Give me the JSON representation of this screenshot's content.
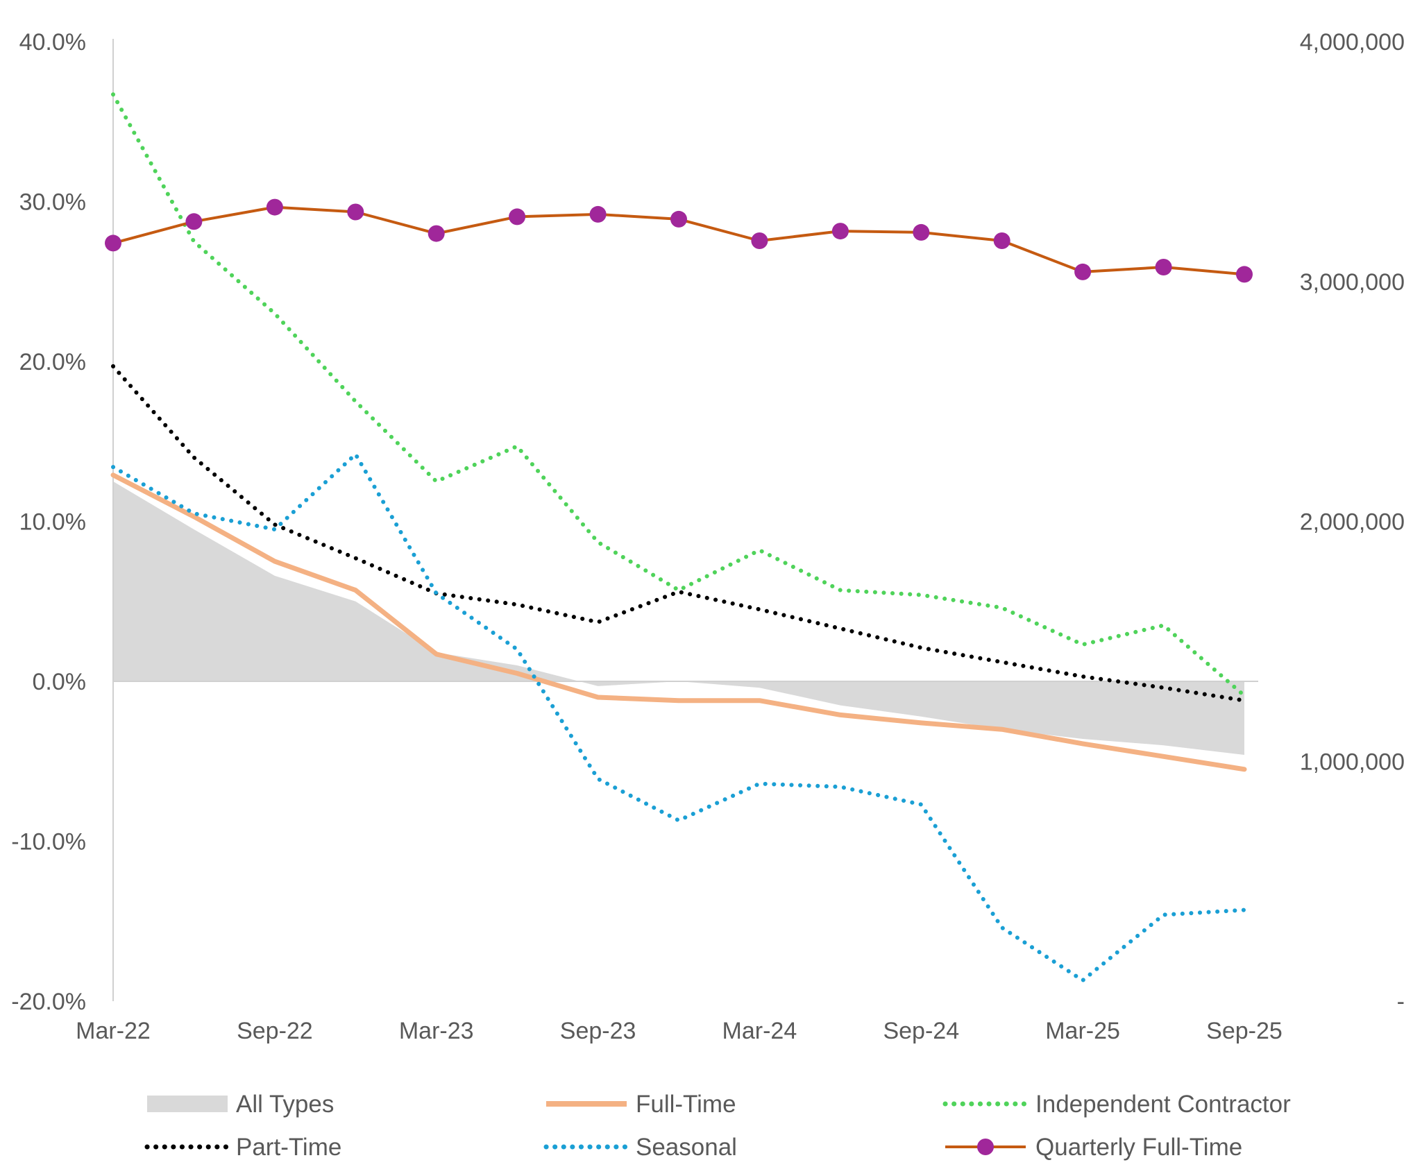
{
  "chart_data": {
    "type": "line",
    "title": "",
    "xlabel": "",
    "ylabel_left": "",
    "ylabel_right": "",
    "x_tick_labels": [
      "Mar-22",
      "Sep-22",
      "Mar-23",
      "Sep-23",
      "Mar-24",
      "Sep-24",
      "Mar-25",
      "Sep-25"
    ],
    "x": [
      "Mar-22",
      "Jun-22",
      "Sep-22",
      "Dec-22",
      "Mar-23",
      "Jun-23",
      "Sep-23",
      "Dec-23",
      "Mar-24",
      "Jun-24",
      "Sep-24",
      "Dec-24",
      "Mar-25",
      "Jun-25",
      "Sep-25"
    ],
    "y_left": {
      "min": -20,
      "max": 40,
      "step": 10,
      "tick_labels": [
        "-20.0%",
        "-10.0%",
        "0.0%",
        "10.0%",
        "20.0%",
        "30.0%",
        "40.0%"
      ]
    },
    "y_right": {
      "min": 0,
      "max": 4000000,
      "step": 1000000,
      "tick_labels": [
        "-",
        "1,000,000",
        "2,000,000",
        "3,000,000",
        "4,000,000"
      ]
    },
    "grid": false,
    "legend_position": "bottom",
    "series": [
      {
        "name": "All Types",
        "style": "area",
        "axis": "left",
        "color": "#d9d9d9",
        "values": [
          12.5,
          9.5,
          6.6,
          5.0,
          1.8,
          1.0,
          -0.3,
          0.0,
          -0.4,
          -1.5,
          -2.2,
          -3.0,
          -3.6,
          -4.0,
          -4.6
        ]
      },
      {
        "name": "Full-Time",
        "style": "line",
        "axis": "left",
        "color": "#f4b183",
        "values": [
          12.9,
          10.3,
          7.5,
          5.7,
          1.7,
          0.5,
          -1.0,
          -1.2,
          -1.2,
          -2.1,
          -2.6,
          -3.0,
          -3.9,
          -4.7,
          -5.5
        ]
      },
      {
        "name": "Independent Contractor",
        "style": "dotted",
        "axis": "left",
        "color": "#4fd35a",
        "values": [
          36.7,
          27.5,
          23.0,
          17.5,
          12.5,
          14.7,
          8.7,
          5.7,
          8.2,
          5.7,
          5.4,
          4.6,
          2.3,
          3.5,
          -0.9
        ]
      },
      {
        "name": "Part-Time",
        "style": "dotted",
        "axis": "left",
        "color": "#000000",
        "values": [
          19.7,
          14.0,
          9.8,
          7.7,
          5.5,
          4.8,
          3.7,
          5.6,
          4.5,
          3.3,
          2.1,
          1.2,
          0.3,
          -0.4,
          -1.2
        ]
      },
      {
        "name": "Seasonal",
        "style": "dotted",
        "axis": "left",
        "color": "#1a9fd4",
        "values": [
          13.4,
          10.5,
          9.5,
          14.2,
          5.5,
          2.0,
          -6.1,
          -8.7,
          -6.4,
          -6.6,
          -7.7,
          -15.4,
          -18.7,
          -14.6,
          -14.3
        ]
      },
      {
        "name": "Quarterly Full-Time",
        "style": "line-markers",
        "axis": "right",
        "color": "#c55a11",
        "marker_color": "#a0279a",
        "values": [
          3160000,
          3250000,
          3310000,
          3290000,
          3200000,
          3270000,
          3280000,
          3260000,
          3170000,
          3210000,
          3205000,
          3170000,
          3040000,
          3060000,
          3030000
        ]
      }
    ]
  },
  "legend": {
    "all_types": "All Types",
    "full_time": "Full-Time",
    "independent_contractor": "Independent Contractor",
    "part_time": "Part-Time",
    "seasonal": "Seasonal",
    "quarterly_full_time": "Quarterly Full-Time"
  }
}
